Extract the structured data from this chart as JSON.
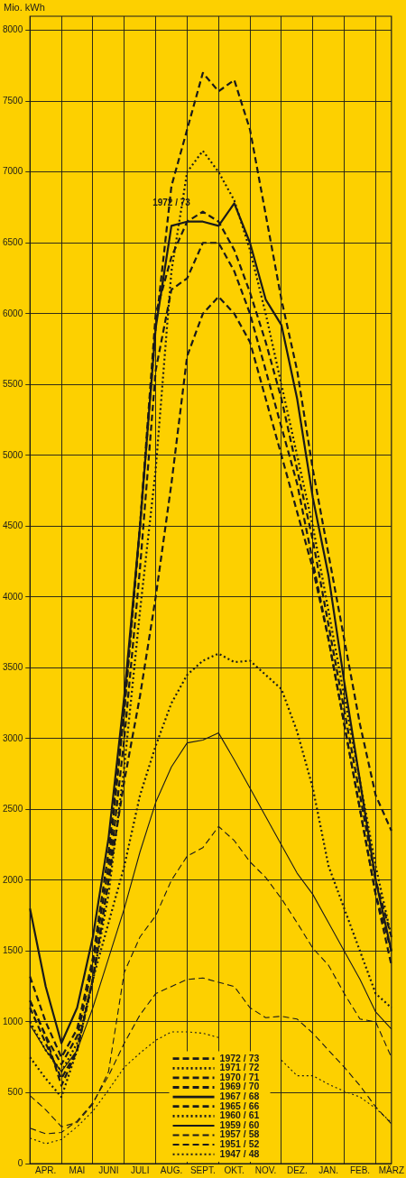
{
  "chart_data": {
    "type": "line",
    "ylabel": "Mio. kWh",
    "categories": [
      null,
      "APR.",
      null,
      "MAI",
      null,
      "JUNI",
      null,
      "JULI",
      null,
      "AUG.",
      null,
      "SEPT.",
      null,
      "OKT.",
      null,
      "NOV.",
      null,
      "DEZ.",
      null,
      "JAN.",
      null,
      "FEB.",
      null,
      "MÄRZ"
    ],
    "ylim": [
      0,
      8100
    ],
    "yticks": [
      0,
      500,
      1000,
      1500,
      2000,
      2500,
      3000,
      3500,
      4000,
      4500,
      5000,
      5500,
      6000,
      6500,
      7000,
      7500,
      8000
    ],
    "grid": true,
    "legend": "bottom",
    "marker": "none",
    "annotations": [
      {
        "text": "1972 / 73",
        "x": "AUG.",
        "y": 6780
      }
    ],
    "series": [
      {
        "name": "1972 / 73",
        "color": "#1a1a1a",
        "line_style": "dashed",
        "values": [
          1150,
          900,
          700,
          900,
          1400,
          2100,
          3200,
          4500,
          5900,
          6900,
          7300,
          7700,
          7570,
          7650,
          7300,
          6700,
          6100,
          5600,
          4900,
          4300,
          3700,
          3100,
          2600,
          2350
        ]
      },
      {
        "name": "1971 / 72",
        "color": "#1a1a1a",
        "line_style": "dotted",
        "values": [
          1000,
          800,
          650,
          850,
          1300,
          1900,
          2800,
          3900,
          4900,
          6300,
          7000,
          7150,
          7000,
          6800,
          6450,
          6000,
          5500,
          5000,
          4500,
          3900,
          3300,
          2700,
          2100,
          1600
        ]
      },
      {
        "name": "1970 / 71",
        "color": "#1a1a1a",
        "line_style": "dashed",
        "values": [
          1100,
          850,
          600,
          800,
          1300,
          2000,
          3000,
          4200,
          5600,
          6170,
          6250,
          6500,
          6500,
          6300,
          6000,
          5600,
          5200,
          4800,
          4250,
          3700,
          3100,
          2500,
          1900,
          1500
        ]
      },
      {
        "name": "1969 / 70",
        "color": "#1a1a1a",
        "line_style": "dashed",
        "values": [
          1320,
          1000,
          750,
          950,
          1450,
          2200,
          3200,
          4500,
          6000,
          6400,
          6650,
          6720,
          6650,
          6450,
          6150,
          5800,
          5400,
          4900,
          4400,
          3800,
          3200,
          2600,
          2000,
          1600
        ]
      },
      {
        "name": "1967 / 68",
        "color": "#1a1a1a",
        "line_style": "solid",
        "values": [
          1800,
          1250,
          850,
          1100,
          1600,
          2300,
          3300,
          4500,
          5900,
          6620,
          6650,
          6650,
          6620,
          6780,
          6500,
          6100,
          5920,
          5400,
          4700,
          4150,
          3400,
          2700,
          2000,
          1500
        ]
      },
      {
        "name": "1965 / 66",
        "color": "#1a1a1a",
        "line_style": "dashed",
        "values": [
          1150,
          900,
          550,
          800,
          1300,
          2000,
          2700,
          3300,
          4000,
          4800,
          5700,
          6000,
          6120,
          6000,
          5800,
          5400,
          5000,
          4600,
          4200,
          3700,
          3100,
          2500,
          1900,
          1400
        ]
      },
      {
        "name": "1960 / 61",
        "color": "#1a1a1a",
        "line_style": "dotted",
        "values": [
          750,
          600,
          470,
          800,
          1300,
          1700,
          2100,
          2600,
          2950,
          3250,
          3450,
          3550,
          3600,
          3540,
          3550,
          3450,
          3350,
          3050,
          2650,
          2100,
          1800,
          1500,
          1200,
          1100
        ]
      },
      {
        "name": "1959 / 60",
        "color": "#1a1a1a",
        "line_style": "solid",
        "values": [
          980,
          800,
          650,
          800,
          1100,
          1450,
          1800,
          2200,
          2550,
          2800,
          2970,
          2990,
          3040,
          2850,
          2650,
          2450,
          2250,
          2050,
          1900,
          1700,
          1500,
          1300,
          1070,
          950
        ]
      },
      {
        "name": "1957 / 58",
        "color": "#1a1a1a",
        "line_style": "dashed",
        "values": [
          480,
          380,
          260,
          290,
          420,
          650,
          1350,
          1600,
          1750,
          2000,
          2170,
          2230,
          2380,
          2280,
          2130,
          2020,
          1870,
          1700,
          1520,
          1400,
          1200,
          1020,
          1000,
          750
        ]
      },
      {
        "name": "1951 / 52",
        "color": "#1a1a1a",
        "line_style": "dashed",
        "values": [
          250,
          210,
          220,
          300,
          430,
          620,
          850,
          1050,
          1200,
          1250,
          1300,
          1310,
          1280,
          1250,
          1100,
          1030,
          1040,
          1020,
          920,
          800,
          680,
          550,
          400,
          280
        ]
      },
      {
        "name": "1947 / 48",
        "color": "#1a1a1a",
        "line_style": "dotted",
        "values": [
          180,
          140,
          170,
          260,
          370,
          520,
          680,
          780,
          870,
          930,
          930,
          920,
          890,
          null,
          null,
          null,
          730,
          620,
          620,
          560,
          510,
          470,
          390,
          290
        ]
      }
    ]
  }
}
